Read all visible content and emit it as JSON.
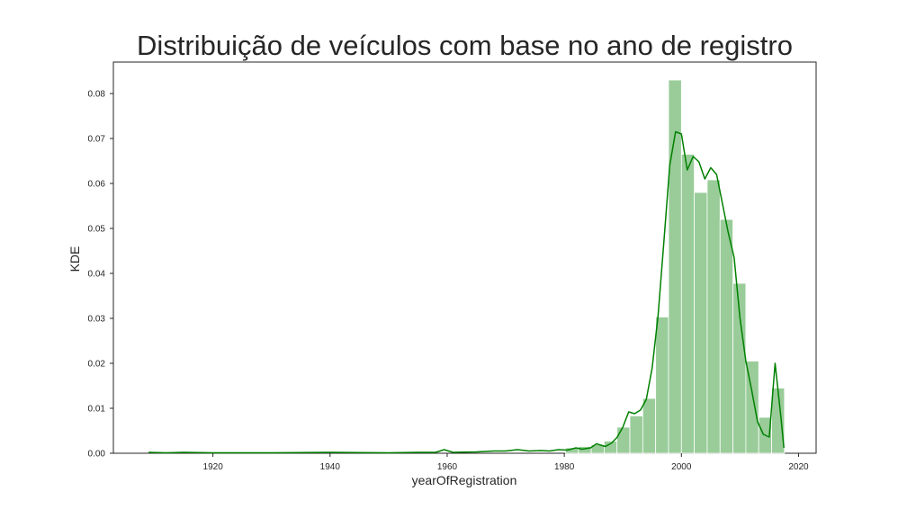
{
  "chart_data": {
    "type": "bar",
    "title": "Distribuição de veículos com base no ano de registro",
    "xlabel": "yearOfRegistration",
    "ylabel": "KDE",
    "xlim": [
      1903,
      2023
    ],
    "ylim": [
      0,
      0.087
    ],
    "x_ticks": [
      1920,
      1940,
      1960,
      1980,
      2000,
      2020
    ],
    "y_ticks": [
      0.0,
      0.01,
      0.02,
      0.03,
      0.04,
      0.05,
      0.06,
      0.07,
      0.08
    ],
    "x_tick_labels": [
      "1920",
      "1940",
      "1960",
      "1980",
      "2000",
      "2020"
    ],
    "y_tick_labels": [
      "0.00",
      "0.01",
      "0.02",
      "0.03",
      "0.04",
      "0.05",
      "0.06",
      "0.07",
      "0.08"
    ],
    "grid": false,
    "histogram": {
      "bar_color": "#99cc99",
      "bins": [
        {
          "x0": 1980.2,
          "x1": 1982.4,
          "density": 0.0012
        },
        {
          "x0": 1982.4,
          "x1": 1984.6,
          "density": 0.0015
        },
        {
          "x0": 1984.6,
          "x1": 1986.8,
          "density": 0.0019
        },
        {
          "x0": 1986.8,
          "x1": 1989.0,
          "density": 0.0027
        },
        {
          "x0": 1989.0,
          "x1": 1991.2,
          "density": 0.0058
        },
        {
          "x0": 1991.2,
          "x1": 1993.4,
          "density": 0.0083
        },
        {
          "x0": 1993.4,
          "x1": 1995.6,
          "density": 0.0122
        },
        {
          "x0": 1995.6,
          "x1": 1997.8,
          "density": 0.0303
        },
        {
          "x0": 1997.8,
          "x1": 2000.0,
          "density": 0.083
        },
        {
          "x0": 2000.0,
          "x1": 2002.2,
          "density": 0.0665
        },
        {
          "x0": 2002.2,
          "x1": 2004.4,
          "density": 0.058
        },
        {
          "x0": 2004.4,
          "x1": 2006.6,
          "density": 0.0608
        },
        {
          "x0": 2006.6,
          "x1": 2008.8,
          "density": 0.052
        },
        {
          "x0": 2008.8,
          "x1": 2011.0,
          "density": 0.0378
        },
        {
          "x0": 2011.0,
          "x1": 2013.2,
          "density": 0.0205
        },
        {
          "x0": 2013.2,
          "x1": 2015.4,
          "density": 0.008
        },
        {
          "x0": 2015.4,
          "x1": 2017.6,
          "density": 0.0145
        }
      ]
    },
    "kde": {
      "color": "#008000",
      "x": [
        1909,
        1912,
        1915,
        1920,
        1930,
        1940,
        1950,
        1955,
        1958,
        1959.5,
        1961,
        1965,
        1968,
        1970,
        1972,
        1974,
        1976,
        1977.5,
        1979,
        1980.5,
        1982,
        1983,
        1984.5,
        1985.5,
        1987,
        1988,
        1989,
        1990,
        1991,
        1992,
        1993,
        1994,
        1995,
        1996,
        1997,
        1998,
        1999,
        2000,
        2001,
        2002,
        2003,
        2004,
        2005,
        2006,
        2007,
        2008,
        2009,
        2010,
        2011,
        2012,
        2013,
        2014,
        2015,
        2016,
        2017,
        2017.5
      ],
      "y": [
        0.0002,
        0.0001,
        0.0002,
        0.0001,
        0.0001,
        0.0002,
        0.0001,
        0.0002,
        0.0002,
        0.0008,
        0.0002,
        0.0003,
        0.0005,
        0.0005,
        0.0008,
        0.0005,
        0.0006,
        0.0005,
        0.0008,
        0.0007,
        0.0012,
        0.0009,
        0.0012,
        0.0021,
        0.0015,
        0.0022,
        0.0035,
        0.0058,
        0.0092,
        0.0088,
        0.0096,
        0.012,
        0.019,
        0.0305,
        0.047,
        0.064,
        0.0715,
        0.071,
        0.063,
        0.066,
        0.0648,
        0.061,
        0.0635,
        0.062,
        0.0555,
        0.049,
        0.0435,
        0.03,
        0.0205,
        0.014,
        0.007,
        0.0042,
        0.0036,
        0.02,
        0.008,
        0.0012
      ]
    }
  }
}
